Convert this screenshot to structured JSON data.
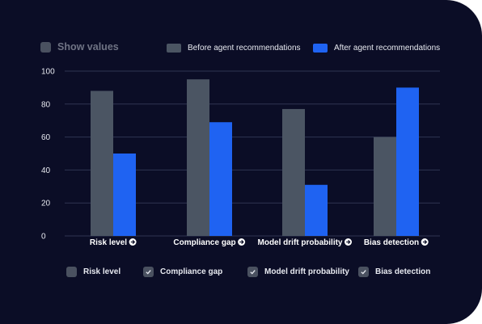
{
  "controls": {
    "show_values_label": "Show values",
    "show_values_checked": false
  },
  "legend": [
    {
      "label": "Before agent recommendations",
      "color": "#4b5563"
    },
    {
      "label": "After agent recommendations",
      "color": "#1f63f2"
    }
  ],
  "toggles": [
    {
      "label": "Risk level",
      "checked": false
    },
    {
      "label": "Compliance gap",
      "checked": true
    },
    {
      "label": "Model drift probability",
      "checked": true
    },
    {
      "label": "Bias detection",
      "checked": true
    }
  ],
  "chart_data": {
    "type": "bar",
    "categories": [
      "Risk level",
      "Compliance gap",
      "Model drift probability",
      "Bias detection"
    ],
    "series": [
      {
        "name": "Before agent recommendations",
        "values": [
          88,
          95,
          77,
          60
        ],
        "color": "#4b5563"
      },
      {
        "name": "After agent recommendations",
        "values": [
          50,
          69,
          31,
          90
        ],
        "color": "#1f63f2"
      }
    ],
    "ylim": [
      0,
      100
    ],
    "yticks": [
      0,
      20,
      40,
      60,
      80,
      100
    ],
    "grid": true,
    "legend_position": "top-right"
  }
}
